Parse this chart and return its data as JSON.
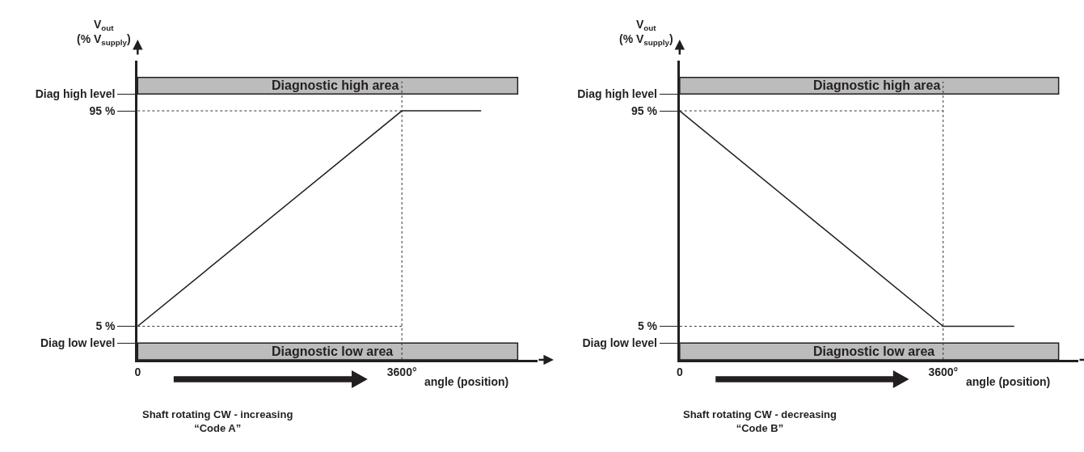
{
  "chart_data": [
    {
      "type": "line",
      "ylabel": "V$_{out}$\n(% V$_{supply}$)",
      "xlabel": "angle (position)",
      "x": [
        0,
        3600,
        4680
      ],
      "series": [
        {
          "color": "#231f20",
          "values": [
            5,
            95,
            95
          ]
        }
      ],
      "xlim": [
        0,
        5450
      ],
      "xticks": [
        0,
        {
          "value": 3600,
          "label": "3600°"
        }
      ],
      "ylim": [
        -9,
        116
      ],
      "yticks": [
        {
          "value": -2,
          "label": "Diag low level"
        },
        {
          "value": 5,
          "label": "5 %"
        },
        {
          "value": 95,
          "label": "95 %"
        },
        {
          "value": 102,
          "label": "Diag high level"
        }
      ],
      "ref_lines": [
        {
          "axis": "y",
          "value": 95,
          "color": "#333333",
          "line_style": "dotted"
        },
        {
          "axis": "y",
          "value": 5,
          "color": "#333333",
          "line_style": "dotted"
        },
        {
          "axis": "x",
          "value": 3600,
          "color": "#333333",
          "line_style": "dotted"
        }
      ],
      "bands": [
        {
          "axis": "y",
          "from": 102,
          "to": 109,
          "label": "Diagnostic high area",
          "color": "#bcbcbc"
        },
        {
          "axis": "y",
          "from": -9,
          "to": -2,
          "label": "Diagnostic low area",
          "color": "#bcbcbc"
        }
      ],
      "annotations": [
        "Shaft rotating CW - increasing\n“Code A”"
      ],
      "grid": false,
      "marker": "none",
      "line_style": "solid"
    },
    {
      "type": "line",
      "ylabel": "V$_{out}$\n(% V$_{supply}$)",
      "xlabel": "angle (position)",
      "x": [
        0,
        3600,
        4570
      ],
      "series": [
        {
          "color": "#231f20",
          "values": [
            95,
            5,
            5
          ]
        }
      ],
      "xlim": [
        0,
        5450
      ],
      "xticks": [
        0,
        {
          "value": 3600,
          "label": "3600°"
        }
      ],
      "ylim": [
        -9,
        116
      ],
      "yticks": [
        {
          "value": -2,
          "label": "Diag low level"
        },
        {
          "value": 5,
          "label": "5 %"
        },
        {
          "value": 95,
          "label": "95 %"
        },
        {
          "value": 102,
          "label": "Diag high level"
        }
      ],
      "ref_lines": [
        {
          "axis": "y",
          "value": 95,
          "color": "#333333",
          "line_style": "dotted"
        },
        {
          "axis": "y",
          "value": 5,
          "color": "#333333",
          "line_style": "dotted"
        },
        {
          "axis": "x",
          "value": 3600,
          "color": "#333333",
          "line_style": "dotted"
        }
      ],
      "bands": [
        {
          "axis": "y",
          "from": 102,
          "to": 109,
          "label": "Diagnostic high area",
          "color": "#bcbcbc"
        },
        {
          "axis": "y",
          "from": -9,
          "to": -2,
          "label": "Diagnostic low area",
          "color": "#bcbcbc"
        }
      ],
      "annotations": [
        "Shaft rotating CW - decreasing\n“Code B”"
      ],
      "grid": false,
      "marker": "none",
      "line_style": "solid"
    }
  ]
}
